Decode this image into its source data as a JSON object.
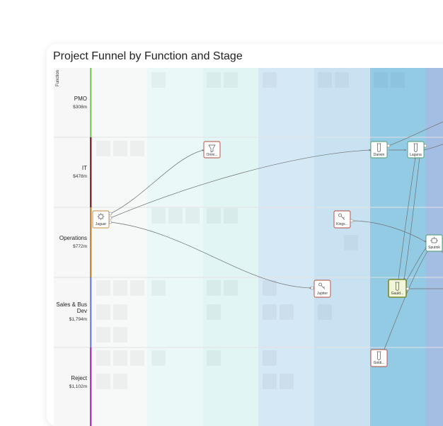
{
  "title": "Project Funnel by Function and Stage",
  "axis_label": "Function",
  "colors": {
    "stage_columns": [
      "#f7f8f8",
      "#eaf8f7",
      "#e1f5f5",
      "#d5e8f6",
      "#c8e2f2",
      "#93cbe5",
      "#a4bde2"
    ],
    "node_border": "#b5483e",
    "node_border_stage": "#4a9a6a"
  },
  "rows": [
    {
      "name": "PMO",
      "value": "$308m",
      "color": "#7dd35a"
    },
    {
      "name": "IT",
      "value": "$478m",
      "color": "#8a2a34"
    },
    {
      "name": "Operations",
      "value": "$772m",
      "color": "#c88a3a"
    },
    {
      "name": "Sales & Bus Dev",
      "value": "$1,794m",
      "color": "#7a8ae0"
    },
    {
      "name": "Reject",
      "value": "$1,102m",
      "color": "#b23bc2"
    }
  ],
  "nodes": [
    {
      "id": "jaguar",
      "label": "Jaguar",
      "icon": "gear-icon"
    },
    {
      "id": "omni",
      "label": "Omni...",
      "icon": "funnel-icon"
    },
    {
      "id": "jupiter",
      "label": "Jupiter",
      "icon": "key-icon"
    },
    {
      "id": "kings",
      "label": "Kings...",
      "icon": "key-icon"
    },
    {
      "id": "darwin",
      "label": "Darwin",
      "icon": "test-tube-icon"
    },
    {
      "id": "laguna",
      "label": "Laguna",
      "icon": "test-tube-icon"
    },
    {
      "id": "sputnik",
      "label": "Sputnik",
      "icon": "robot-icon"
    },
    {
      "id": "gauld",
      "label": "Gauld...",
      "icon": "test-tube-icon"
    },
    {
      "id": "goldi",
      "label": "Goldi...",
      "icon": "test-tube-icon"
    }
  ]
}
